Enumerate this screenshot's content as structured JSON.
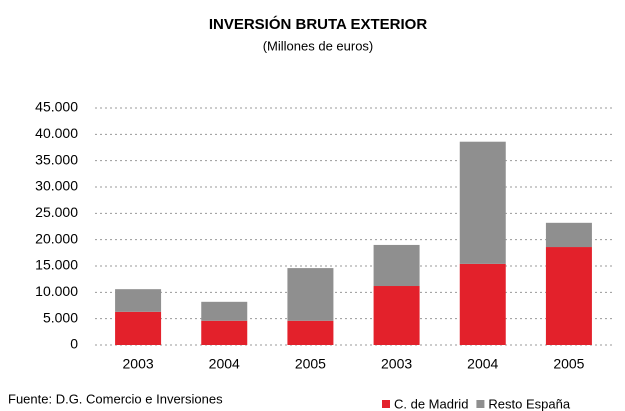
{
  "chart_data": {
    "type": "stacked_bar",
    "title": "INVERSIÓN BRUTA EXTERIOR",
    "subtitle": "(Millones de euros)",
    "categories": [
      "2003",
      "2004",
      "2005",
      "2003",
      "2004",
      "2005"
    ],
    "series": [
      {
        "name": "C. de Madrid",
        "color": "#e3212b",
        "values": [
          6300,
          4600,
          4600,
          11200,
          15400,
          18600
        ]
      },
      {
        "name": "Resto España",
        "color": "#8f8f8f",
        "values": [
          4300,
          3600,
          10000,
          7800,
          23200,
          4600
        ]
      }
    ],
    "ylim": [
      0,
      45000
    ],
    "yticks": [
      0,
      {
        "value": 5000,
        "label": "5.000"
      },
      {
        "value": 10000,
        "label": "10.000"
      },
      {
        "value": 15000,
        "label": "15.000"
      },
      {
        "value": 20000,
        "label": "20.000"
      },
      {
        "value": 25000,
        "label": "25.000"
      },
      {
        "value": 30000,
        "label": "30.000"
      },
      {
        "value": 35000,
        "label": "35.000"
      },
      {
        "value": 40000,
        "label": "40.000"
      },
      {
        "value": 45000,
        "label": "45.000"
      }
    ],
    "grid": true,
    "legend": "bottom-right",
    "source": "Fuente: D.G. Comercio e Inversiones"
  }
}
